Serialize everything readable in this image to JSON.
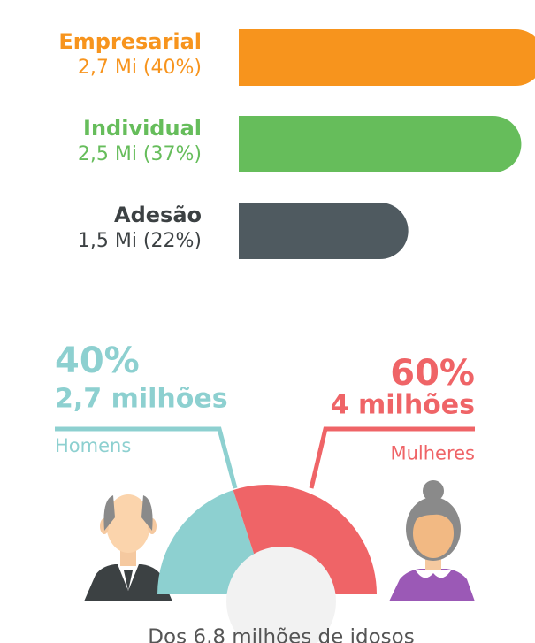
{
  "chart_data": [
    {
      "type": "bar",
      "categories": [
        "Empresarial",
        "Individual",
        "Adesão"
      ],
      "values": [
        2.7,
        2.5,
        1.5
      ],
      "value_labels": [
        "2,7 Mi (40%)",
        "2,5 Mi (37%)",
        "1,5 Mi (22%)"
      ],
      "colors": [
        "#f7941d",
        "#66bd5b",
        "#4f5a60"
      ]
    },
    {
      "type": "semi-donut",
      "categories": [
        "Homens",
        "Mulheres"
      ],
      "values": [
        40,
        60
      ],
      "value_labels": [
        "40%",
        "60%"
      ],
      "amount_labels": [
        "2,7 milhões",
        "4 milhões"
      ],
      "colors": [
        "#8dd0d0",
        "#ef6467"
      ],
      "caption": "Dos 6,8 milhões de idosos"
    }
  ]
}
